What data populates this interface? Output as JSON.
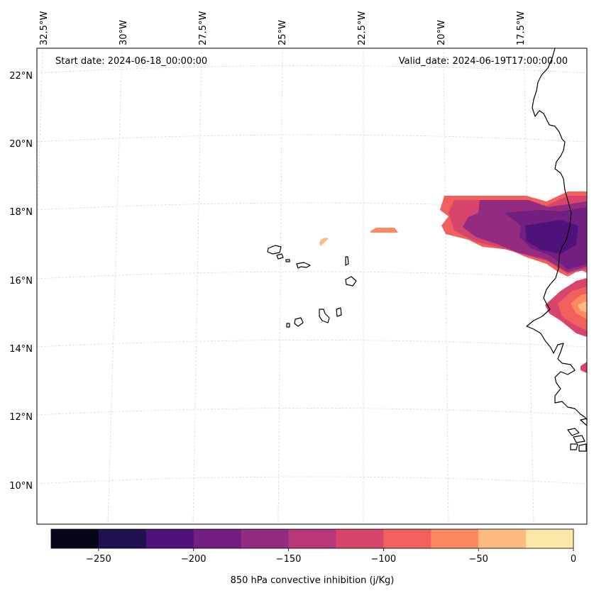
{
  "header": {
    "start_date": "Start date: 2024-06-18_00:00:00",
    "valid_date": "Valid_date: 2024-06-19T17:00:00.00"
  },
  "longitude_labels": [
    "32.5°W",
    "30°W",
    "27.5°W",
    "25°W",
    "22.5°W",
    "20°W",
    "17.5°W"
  ],
  "latitude_labels": [
    "22°N",
    "20°N",
    "18°N",
    "16°N",
    "14°N",
    "12°N",
    "10°N"
  ],
  "colorbar": {
    "label": "850 hPa convective inhibition (j/Kg)",
    "levels": [
      -275,
      -250,
      -225,
      -200,
      -175,
      -150,
      -125,
      -100,
      -75,
      -50,
      -25,
      0
    ],
    "tick_labels": [
      "−250",
      "−200",
      "−150",
      "−100",
      "−50",
      "0"
    ],
    "tick_values": [
      -250,
      -200,
      -150,
      -100,
      -50,
      0
    ],
    "colors": [
      "#07051a",
      "#221150",
      "#4f127b",
      "#721f81",
      "#932b80",
      "#b73779",
      "#d8456c",
      "#f1605d",
      "#fc8961",
      "#febb81",
      "#fde7a8"
    ]
  },
  "map_style": {
    "coast_color": "#000000",
    "grid_color": "#d8d8d8"
  }
}
